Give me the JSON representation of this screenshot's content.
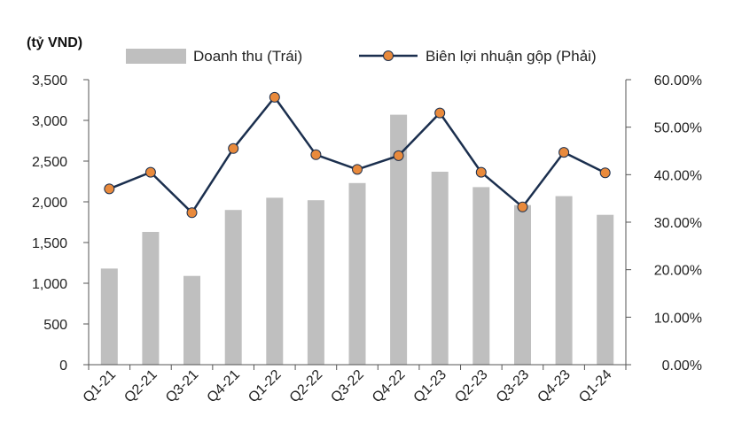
{
  "chart_data": {
    "type": "bar+line",
    "unit_label": "(tỷ VND)",
    "categories": [
      "Q1-21",
      "Q2-21",
      "Q3-21",
      "Q4-21",
      "Q1-22",
      "Q2-22",
      "Q3-22",
      "Q4-22",
      "Q1-23",
      "Q2-23",
      "Q3-23",
      "Q4-23",
      "Q1-24"
    ],
    "series": [
      {
        "name": "Doanh thu (Trái)",
        "type": "bar",
        "axis": "left",
        "color": "#bfbfbf",
        "values": [
          1180,
          1630,
          1090,
          1900,
          2050,
          2020,
          2230,
          3070,
          2370,
          2180,
          1960,
          2070,
          1840
        ]
      },
      {
        "name": "Biên lợi nhuận gộp (Phải)",
        "type": "line",
        "axis": "right",
        "color": "#1b2f4e",
        "marker_color": "#e98a3c",
        "values": [
          37.0,
          40.5,
          32.0,
          45.5,
          56.3,
          44.2,
          41.1,
          44.0,
          53.0,
          40.5,
          33.2,
          44.7,
          40.4
        ]
      }
    ],
    "y_left": {
      "ylim": [
        0,
        3500
      ],
      "ticks": [
        "0",
        "500",
        "1,000",
        "1,500",
        "2,000",
        "2,500",
        "3,000",
        "3,500"
      ],
      "tick_values": [
        0,
        500,
        1000,
        1500,
        2000,
        2500,
        3000,
        3500
      ]
    },
    "y_right": {
      "ylim": [
        0,
        60
      ],
      "ticks": [
        "0.00%",
        "10.00%",
        "20.00%",
        "30.00%",
        "40.00%",
        "50.00%",
        "60.00%"
      ],
      "tick_values": [
        0,
        10,
        20,
        30,
        40,
        50,
        60
      ]
    },
    "grid": false,
    "legend_position": "top"
  }
}
